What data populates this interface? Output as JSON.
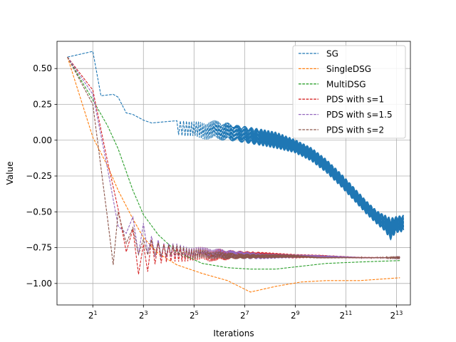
{
  "chart_data": {
    "type": "line",
    "title": "",
    "xlabel": "Iterations",
    "ylabel": "Value",
    "xscale": "log2",
    "xlim": [
      0.75,
      12000
    ],
    "ylim": [
      -1.15,
      0.69
    ],
    "grid": true,
    "legend_position": "top-right",
    "x_ticks": [
      {
        "value": 2,
        "base": "2",
        "exp": "1"
      },
      {
        "value": 8,
        "base": "2",
        "exp": "3"
      },
      {
        "value": 32,
        "base": "2",
        "exp": "5"
      },
      {
        "value": 128,
        "base": "2",
        "exp": "7"
      },
      {
        "value": 512,
        "base": "2",
        "exp": "9"
      },
      {
        "value": 2048,
        "base": "2",
        "exp": "11"
      },
      {
        "value": 8192,
        "base": "2",
        "exp": "13"
      }
    ],
    "y_ticks": [
      {
        "value": 0.5,
        "label": "0.50"
      },
      {
        "value": 0.25,
        "label": "0.25"
      },
      {
        "value": 0.0,
        "label": "0.00"
      },
      {
        "value": -0.25,
        "label": "−0.25"
      },
      {
        "value": -0.5,
        "label": "−0.50"
      },
      {
        "value": -0.75,
        "label": "−0.75"
      },
      {
        "value": -1.0,
        "label": "−1.00"
      }
    ],
    "series": [
      {
        "name": "SG",
        "color": "#1f77b4",
        "x": [
          1,
          2,
          2.5,
          3.5,
          4,
          5,
          6,
          8,
          10,
          20,
          30,
          60,
          100,
          200,
          300,
          500,
          800,
          1200,
          1800,
          2600,
          3600,
          4800,
          6000,
          7000,
          8000,
          10000
        ],
        "y": [
          0.58,
          0.62,
          0.31,
          0.32,
          0.3,
          0.19,
          0.18,
          0.14,
          0.12,
          0.1,
          0.07,
          0.07,
          0.05,
          0.02,
          0.0,
          -0.04,
          -0.1,
          -0.18,
          -0.28,
          -0.38,
          -0.47,
          -0.54,
          -0.58,
          -0.62,
          -0.59,
          -0.58
        ],
        "osc_amp": [
          0,
          0,
          0,
          0,
          0,
          0,
          0,
          0,
          0,
          0.06,
          0.06,
          0.07,
          0.06,
          0.06,
          0.06,
          0.05,
          0.05,
          0.05,
          0.05,
          0.05,
          0.05,
          0.05,
          0.06,
          0.08,
          0.06,
          0.06
        ],
        "osc_from": 20
      },
      {
        "name": "SingleDSG",
        "color": "#ff7f0e",
        "x": [
          1,
          2,
          3,
          4,
          6,
          8,
          12,
          20,
          40,
          80,
          150,
          300,
          600,
          1200,
          3000,
          9000
        ],
        "y": [
          0.58,
          0.02,
          -0.18,
          -0.35,
          -0.55,
          -0.68,
          -0.79,
          -0.87,
          -0.93,
          -0.98,
          -1.06,
          -1.02,
          -0.99,
          -0.98,
          -0.98,
          -0.96
        ]
      },
      {
        "name": "MultiDSG",
        "color": "#2ca02c",
        "x": [
          1,
          2,
          3,
          4,
          6,
          8,
          12,
          20,
          40,
          80,
          150,
          300,
          600,
          1200,
          3000,
          9000
        ],
        "y": [
          0.58,
          0.28,
          0.1,
          -0.06,
          -0.35,
          -0.52,
          -0.66,
          -0.78,
          -0.86,
          -0.89,
          -0.9,
          -0.9,
          -0.88,
          -0.86,
          -0.85,
          -0.84
        ]
      },
      {
        "name": "PDS with s=1",
        "color": "#d62728",
        "x": [
          1,
          2,
          3,
          4,
          5,
          6,
          7,
          8,
          10,
          14,
          20,
          30,
          50,
          100,
          200,
          500,
          1000,
          3000,
          9000
        ],
        "y": [
          0.58,
          0.35,
          -0.15,
          -0.48,
          -0.66,
          -0.72,
          -0.8,
          -0.84,
          -0.78,
          -0.8,
          -0.8,
          -0.79,
          -0.8,
          -0.8,
          -0.8,
          -0.81,
          -0.81,
          -0.82,
          -0.82
        ],
        "osc_amp": [
          0,
          0,
          0,
          0,
          0.12,
          0.14,
          0.14,
          0.14,
          0.1,
          0.08,
          0.06,
          0.05,
          0.05,
          0.03,
          0.02,
          0.015,
          0.01,
          0.005,
          0.003
        ],
        "osc_from": 4
      },
      {
        "name": "PDS with s=1.5",
        "color": "#9467bd",
        "x": [
          1,
          2,
          3,
          4,
          5,
          6,
          7,
          8,
          10,
          14,
          20,
          30,
          50,
          100,
          200,
          500,
          1000,
          3000,
          9000
        ],
        "y": [
          0.58,
          0.32,
          -0.2,
          -0.6,
          -0.55,
          -0.62,
          -0.68,
          -0.66,
          -0.74,
          -0.78,
          -0.77,
          -0.78,
          -0.79,
          -0.8,
          -0.81,
          -0.81,
          -0.81,
          -0.82,
          -0.82
        ],
        "osc_amp": [
          0,
          0,
          0,
          0,
          0.1,
          0.12,
          0.12,
          0.1,
          0.08,
          0.06,
          0.05,
          0.04,
          0.04,
          0.03,
          0.02,
          0.012,
          0.008,
          0.004,
          0.002
        ],
        "osc_from": 4
      },
      {
        "name": "PDS with s=2",
        "color": "#8c564b",
        "x": [
          1,
          2,
          3,
          3.5,
          4,
          5,
          6,
          7,
          8,
          10,
          14,
          20,
          30,
          50,
          100,
          200,
          500,
          1000,
          3000,
          9000
        ],
        "y": [
          0.58,
          0.25,
          -0.55,
          -0.87,
          -0.55,
          -0.62,
          -0.68,
          -0.72,
          -0.74,
          -0.75,
          -0.78,
          -0.77,
          -0.79,
          -0.8,
          -0.81,
          -0.81,
          -0.81,
          -0.82,
          -0.82,
          -0.82
        ],
        "osc_amp": [
          0,
          0,
          0,
          0,
          0.08,
          0.1,
          0.1,
          0.08,
          0.06,
          0.06,
          0.05,
          0.04,
          0.04,
          0.03,
          0.02,
          0.015,
          0.01,
          0.005,
          0.003,
          0.002
        ],
        "osc_from": 4
      }
    ]
  }
}
